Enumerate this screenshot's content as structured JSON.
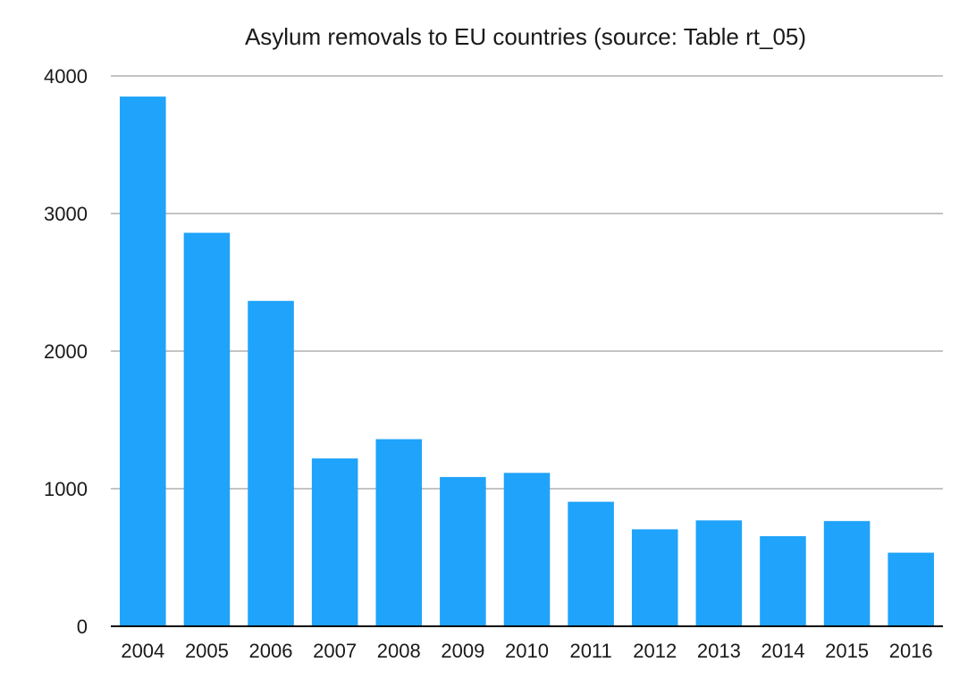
{
  "chart_data": {
    "type": "bar",
    "title": "Asylum removals to EU countries (source: Table rt_05)",
    "xlabel": "",
    "ylabel": "",
    "categories": [
      "2004",
      "2005",
      "2006",
      "2007",
      "2008",
      "2009",
      "2010",
      "2011",
      "2012",
      "2013",
      "2014",
      "2015",
      "2016"
    ],
    "values": [
      3850,
      2860,
      2365,
      1220,
      1360,
      1085,
      1115,
      905,
      705,
      770,
      655,
      765,
      535
    ],
    "ylim": [
      0,
      4000
    ],
    "yticks": [
      "0",
      "1000",
      "2000",
      "3000",
      "4000"
    ],
    "grid": true,
    "legend": "none",
    "colors": {
      "bar": "#1fa3fb",
      "grid": "#c4c4c4",
      "axis": "#000000"
    }
  }
}
